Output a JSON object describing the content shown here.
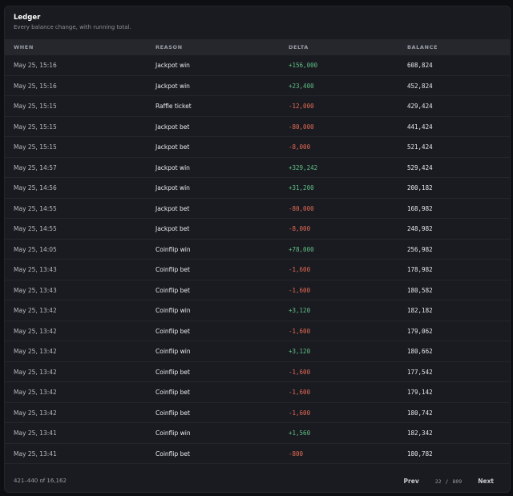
{
  "ledger": {
    "title": "Ledger",
    "subtitle": "Every balance change, with running total."
  },
  "columns": {
    "when": "WHEN",
    "reason": "REASON",
    "delta": "DELTA",
    "balance": "BALANCE"
  },
  "rows": [
    {
      "when": "May 25, 15:16",
      "reason": "Jackpot win",
      "delta": "+156,000",
      "sign": "pos",
      "balance": "608,824"
    },
    {
      "when": "May 25, 15:16",
      "reason": "Jackpot win",
      "delta": "+23,400",
      "sign": "pos",
      "balance": "452,824"
    },
    {
      "when": "May 25, 15:15",
      "reason": "Raffle ticket",
      "delta": "-12,000",
      "sign": "neg",
      "balance": "429,424"
    },
    {
      "when": "May 25, 15:15",
      "reason": "Jackpot bet",
      "delta": "-80,000",
      "sign": "neg",
      "balance": "441,424"
    },
    {
      "when": "May 25, 15:15",
      "reason": "Jackpot bet",
      "delta": "-8,000",
      "sign": "neg",
      "balance": "521,424"
    },
    {
      "when": "May 25, 14:57",
      "reason": "Jackpot win",
      "delta": "+329,242",
      "sign": "pos",
      "balance": "529,424"
    },
    {
      "when": "May 25, 14:56",
      "reason": "Jackpot win",
      "delta": "+31,200",
      "sign": "pos",
      "balance": "200,182"
    },
    {
      "when": "May 25, 14:55",
      "reason": "Jackpot bet",
      "delta": "-80,000",
      "sign": "neg",
      "balance": "168,982"
    },
    {
      "when": "May 25, 14:55",
      "reason": "Jackpot bet",
      "delta": "-8,000",
      "sign": "neg",
      "balance": "248,982"
    },
    {
      "when": "May 25, 14:05",
      "reason": "Coinflip win",
      "delta": "+78,000",
      "sign": "pos",
      "balance": "256,982"
    },
    {
      "when": "May 25, 13:43",
      "reason": "Coinflip bet",
      "delta": "-1,600",
      "sign": "neg",
      "balance": "178,982"
    },
    {
      "when": "May 25, 13:43",
      "reason": "Coinflip bet",
      "delta": "-1,600",
      "sign": "neg",
      "balance": "180,582"
    },
    {
      "when": "May 25, 13:42",
      "reason": "Coinflip win",
      "delta": "+3,120",
      "sign": "pos",
      "balance": "182,182"
    },
    {
      "when": "May 25, 13:42",
      "reason": "Coinflip bet",
      "delta": "-1,600",
      "sign": "neg",
      "balance": "179,062"
    },
    {
      "when": "May 25, 13:42",
      "reason": "Coinflip win",
      "delta": "+3,120",
      "sign": "pos",
      "balance": "180,662"
    },
    {
      "when": "May 25, 13:42",
      "reason": "Coinflip bet",
      "delta": "-1,600",
      "sign": "neg",
      "balance": "177,542"
    },
    {
      "when": "May 25, 13:42",
      "reason": "Coinflip bet",
      "delta": "-1,600",
      "sign": "neg",
      "balance": "179,142"
    },
    {
      "when": "May 25, 13:42",
      "reason": "Coinflip bet",
      "delta": "-1,600",
      "sign": "neg",
      "balance": "180,742"
    },
    {
      "when": "May 25, 13:41",
      "reason": "Coinflip win",
      "delta": "+1,560",
      "sign": "pos",
      "balance": "182,342"
    },
    {
      "when": "May 25, 13:41",
      "reason": "Coinflip bet",
      "delta": "-800",
      "sign": "neg",
      "balance": "180,782"
    }
  ],
  "footer": {
    "range": "421–440 of 16,162",
    "prev_label": "Prev",
    "next_label": "Next",
    "page_current": "22",
    "page_sep": "/",
    "page_total": "809"
  },
  "colors": {
    "positive": "#5fbf86",
    "negative": "#e26a55"
  }
}
